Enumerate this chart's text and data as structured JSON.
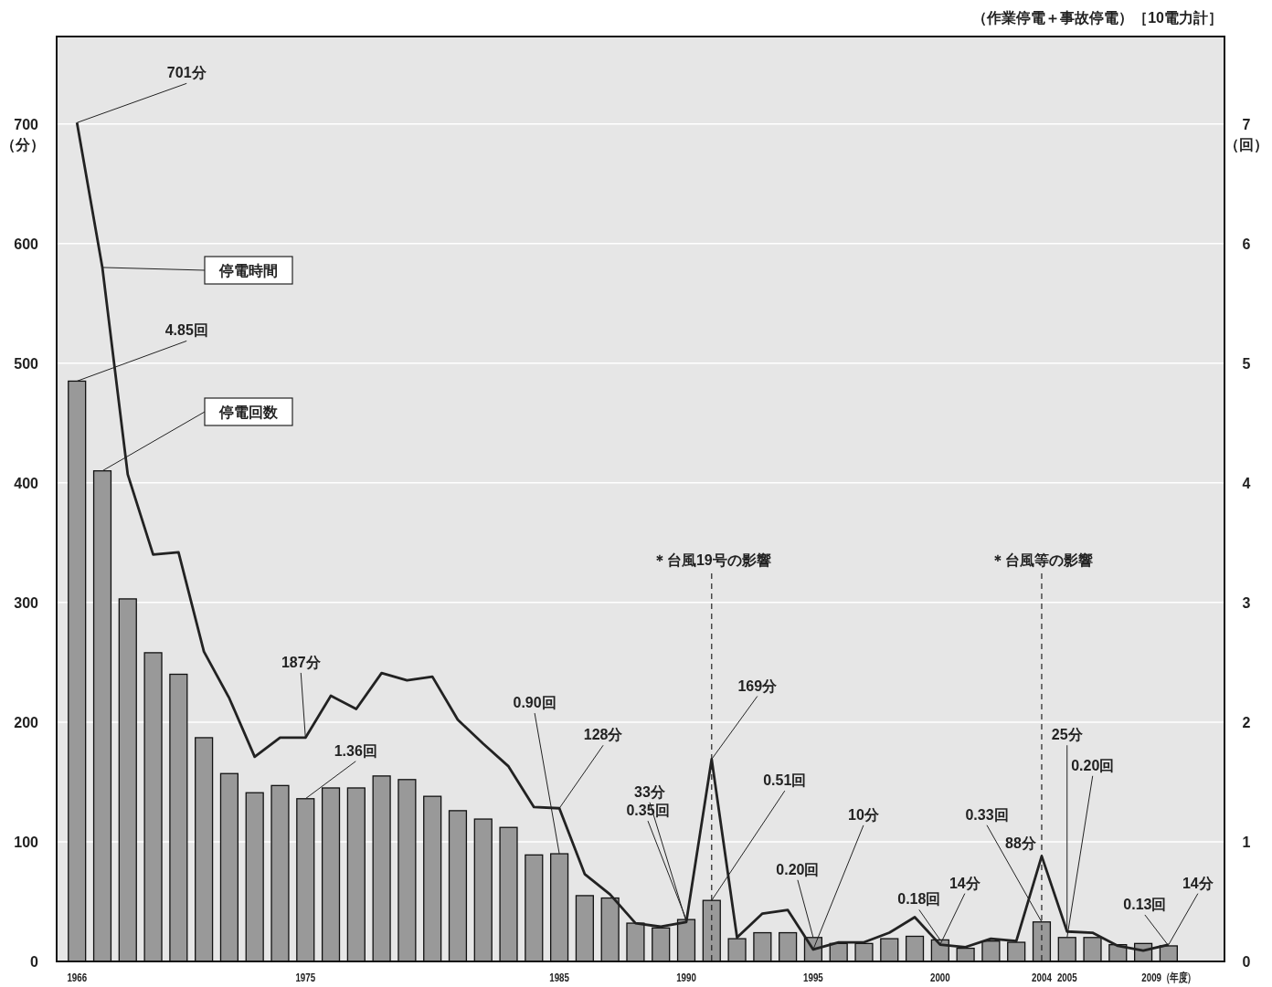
{
  "chart_data": {
    "type": "bar",
    "title": "（作業停電＋事故停電）［10電力計］",
    "ylabel": "（分）",
    "y2label": "（回）",
    "x": [
      1966,
      1967,
      1968,
      1969,
      1970,
      1971,
      1972,
      1973,
      1974,
      1975,
      1976,
      1977,
      1978,
      1979,
      1980,
      1981,
      1982,
      1983,
      1984,
      1985,
      1986,
      1987,
      1988,
      1989,
      1990,
      1991,
      1992,
      1993,
      1994,
      1995,
      1996,
      1997,
      1998,
      1999,
      2000,
      2001,
      2002,
      2003,
      2004,
      2005,
      2006,
      2007,
      2008,
      2009
    ],
    "xlim": [
      1965.2,
      2011.2
    ],
    "xticks": [
      1966,
      1975,
      1985,
      1990,
      1995,
      2000,
      2004,
      2005,
      {
        "value": 2009,
        "label": "2009（年度）"
      }
    ],
    "ylim": [
      0,
      773
    ],
    "yticks": [
      0,
      100,
      200,
      300,
      400,
      500,
      600,
      700
    ],
    "y2lim": [
      0,
      7.73
    ],
    "y2ticks": [
      0,
      1,
      2,
      3,
      4,
      5,
      6,
      7
    ],
    "grid": "y",
    "legend": false,
    "series": [
      {
        "name": "停電回数",
        "axis": "y2",
        "color": "#999999",
        "values": [
          4.85,
          4.1,
          3.03,
          2.58,
          2.4,
          1.87,
          1.57,
          1.41,
          1.47,
          1.36,
          1.45,
          1.45,
          1.55,
          1.52,
          1.38,
          1.26,
          1.19,
          1.12,
          0.89,
          0.9,
          0.55,
          0.53,
          0.32,
          0.28,
          0.35,
          0.51,
          0.19,
          0.24,
          0.24,
          0.2,
          0.15,
          0.15,
          0.19,
          0.21,
          0.18,
          0.11,
          0.17,
          0.16,
          0.33,
          0.2,
          0.2,
          0.14,
          0.15,
          0.13
        ],
        "value_labels": [
          "4.85回",
          null,
          null,
          null,
          null,
          null,
          null,
          null,
          null,
          "1.36回",
          null,
          null,
          null,
          null,
          null,
          null,
          null,
          null,
          null,
          "0.90回",
          null,
          null,
          null,
          null,
          "0.35回",
          "0.51回",
          null,
          null,
          null,
          "0.20回",
          null,
          null,
          null,
          null,
          "0.18回",
          null,
          null,
          null,
          "0.33回",
          "0.20回",
          null,
          null,
          null,
          "0.13回"
        ]
      },
      {
        "name": "停電時間",
        "type": "line",
        "axis": "y",
        "color": "#222222",
        "values": [
          701,
          580,
          407,
          340,
          342,
          259,
          220,
          171,
          187,
          187,
          222,
          211,
          241,
          235,
          238,
          202,
          182,
          163,
          129,
          128,
          73,
          56,
          32,
          29,
          33,
          169,
          20,
          40,
          43,
          10,
          16,
          16,
          24,
          37,
          14,
          12,
          19,
          17,
          88,
          25,
          24,
          13,
          9,
          14
        ],
        "value_labels": [
          "701分",
          null,
          null,
          null,
          null,
          null,
          null,
          null,
          null,
          "187分",
          null,
          null,
          null,
          null,
          null,
          null,
          null,
          null,
          null,
          "128分",
          null,
          null,
          null,
          null,
          "33分",
          "169分",
          null,
          null,
          null,
          "10分",
          null,
          null,
          null,
          null,
          "14分",
          null,
          null,
          null,
          "88分",
          "25分",
          null,
          null,
          null,
          "14分"
        ]
      }
    ],
    "ref_lines": [
      {
        "axis": "x",
        "value": 1991,
        "label": "＊台風19号の影響",
        "line_style": "dashed"
      },
      {
        "axis": "x",
        "value": 2004,
        "label": "＊台風等の影響",
        "line_style": "dashed"
      }
    ]
  }
}
